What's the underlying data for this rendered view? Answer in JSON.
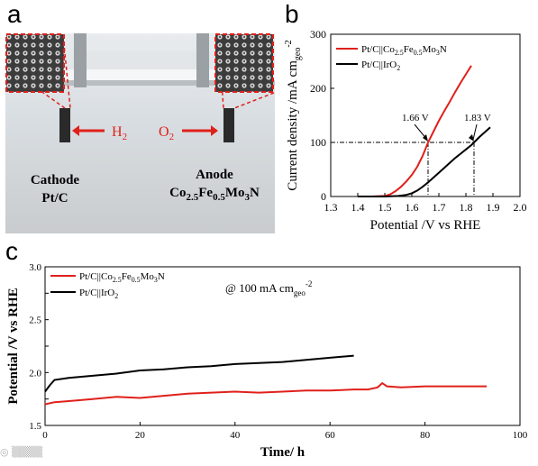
{
  "panel_labels": {
    "a": "a",
    "b": "b",
    "c": "c"
  },
  "photo": {
    "cathode_title": "Cathode",
    "cathode_material": "Pt/C",
    "anode_title": "Anode",
    "anode_material_parts": [
      "Co",
      "2.5",
      "Fe",
      "0.5",
      "Mo",
      "3",
      "N"
    ],
    "gas_cathode": [
      "H",
      "2"
    ],
    "gas_anode": [
      "O",
      "2"
    ]
  },
  "chart_data": [
    {
      "panel": "b",
      "type": "line",
      "xlabel": "Potential /V vs RHE",
      "ylabel": "Current density /mA cm",
      "ylabel_sub": "geo",
      "ylabel_sup": "-2",
      "xlim": [
        1.3,
        2.0
      ],
      "ylim": [
        0,
        300
      ],
      "xticks": [
        1.3,
        1.4,
        1.5,
        1.6,
        1.7,
        1.8,
        1.9,
        2.0
      ],
      "yticks": [
        0,
        100,
        200,
        300
      ],
      "legend_position": "top-left",
      "series": [
        {
          "name": "Pt/C||Co2.5Fe0.5Mo3N",
          "color": "#e0201b",
          "x": [
            1.4,
            1.45,
            1.5,
            1.52,
            1.54,
            1.56,
            1.58,
            1.6,
            1.62,
            1.64,
            1.66,
            1.68,
            1.7,
            1.72,
            1.74,
            1.76,
            1.78,
            1.8,
            1.82
          ],
          "y": [
            0,
            0,
            1,
            4,
            10,
            18,
            28,
            40,
            55,
            75,
            100,
            120,
            140,
            158,
            175,
            193,
            210,
            226,
            242
          ]
        },
        {
          "name": "Pt/C||IrO2",
          "color": "#000000",
          "x": [
            1.4,
            1.45,
            1.5,
            1.55,
            1.58,
            1.6,
            1.62,
            1.64,
            1.66,
            1.68,
            1.7,
            1.72,
            1.74,
            1.76,
            1.78,
            1.8,
            1.82,
            1.83,
            1.85,
            1.87,
            1.89
          ],
          "y": [
            0,
            0,
            0,
            1,
            3,
            6,
            11,
            18,
            26,
            35,
            44,
            53,
            62,
            71,
            79,
            87,
            95,
            100,
            110,
            119,
            128
          ]
        }
      ],
      "annotations": [
        {
          "text": "1.66 V",
          "x": 1.66,
          "y": 100
        },
        {
          "text": "1.83 V",
          "x": 1.83,
          "y": 100
        }
      ],
      "reference_line_y": 100,
      "legend_parts": [
        [
          "Pt/C",
          "||",
          "Co",
          "2.5",
          "Fe",
          "0.5",
          "Mo",
          "3",
          "N"
        ],
        [
          "Pt/C",
          "||",
          "IrO",
          "2",
          "",
          "",
          "",
          "",
          ""
        ]
      ]
    },
    {
      "panel": "c",
      "type": "line",
      "xlabel": "Time/ h",
      "ylabel": "Potential /V vs RHE",
      "xlim": [
        0,
        100
      ],
      "ylim": [
        1.5,
        3.0
      ],
      "xticks": [
        0,
        20,
        40,
        60,
        80,
        100
      ],
      "yticks": [
        1.5,
        1.75,
        2.0,
        2.25,
        2.5,
        2.75,
        3.0
      ],
      "ytick_labels": [
        "1.5",
        "",
        "2.0",
        "",
        "2.5",
        "",
        "3.0"
      ],
      "annotation": "@ 100 mA cm",
      "annotation_sub": "geo",
      "annotation_sup": "-2",
      "legend_position": "top-left",
      "series": [
        {
          "name": "Pt/C||Co2.5Fe0.5Mo3N",
          "color": "#e0201b",
          "x": [
            0,
            2,
            5,
            10,
            15,
            20,
            25,
            30,
            35,
            40,
            45,
            50,
            55,
            60,
            65,
            68,
            70,
            71,
            72,
            75,
            80,
            85,
            90,
            93
          ],
          "y": [
            1.7,
            1.72,
            1.73,
            1.75,
            1.77,
            1.76,
            1.78,
            1.8,
            1.81,
            1.82,
            1.81,
            1.82,
            1.83,
            1.83,
            1.84,
            1.84,
            1.86,
            1.9,
            1.87,
            1.86,
            1.87,
            1.87,
            1.87,
            1.87
          ]
        },
        {
          "name": "Pt/C||IrO2",
          "color": "#000000",
          "x": [
            0,
            1,
            2,
            5,
            10,
            15,
            20,
            25,
            30,
            35,
            40,
            45,
            50,
            55,
            60,
            65
          ],
          "y": [
            1.82,
            1.88,
            1.93,
            1.95,
            1.97,
            1.99,
            2.02,
            2.03,
            2.05,
            2.06,
            2.08,
            2.09,
            2.1,
            2.12,
            2.14,
            2.16
          ]
        }
      ],
      "legend_parts": [
        [
          "Pt/C",
          "||",
          "Co",
          "2.5",
          "Fe",
          "0.5",
          "Mo",
          "3",
          "N"
        ],
        [
          "Pt/C",
          "||",
          "IrO",
          "2",
          "",
          "",
          "",
          "",
          ""
        ]
      ]
    }
  ]
}
